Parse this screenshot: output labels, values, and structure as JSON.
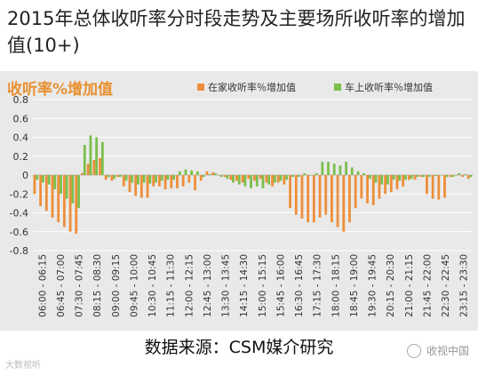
{
  "title": "2015年总体收听率分时段走势及主要场所收听率的增加值(10+)",
  "source": "数据来源：CSM媒介研究",
  "watermark_left": "大数视听",
  "watermark_right": "收视中国",
  "colors": {
    "home": "#ee8e3a",
    "car": "#7bbf4c",
    "subtitle": "#e8902f"
  },
  "chart_data": {
    "type": "bar",
    "title": "收听率%增加值",
    "ylim": [
      -0.8,
      0.8
    ],
    "yticks": [
      "0.8",
      "0.6",
      "0.4",
      "0.2",
      "0",
      "-0.2",
      "-0.4",
      "-0.6",
      "-0.8"
    ],
    "x_tick_labels": [
      "06:00 - 06:15",
      "06:45 - 07:00",
      "07:30 - 07:45",
      "08:15 - 08:30",
      "09:00 - 09:15",
      "09:45 - 10:00",
      "10:30 - 10:45",
      "11:15 - 11:30",
      "12:00 - 12:15",
      "12:45 - 13:00",
      "13:30 - 13:45",
      "14:15 - 14:30",
      "15:00 - 15:15",
      "15:45 - 16:00",
      "16:30 - 16:45",
      "17:15 - 17:30",
      "18:00 - 18:15",
      "18:45 - 19:00",
      "19:30 - 19:45",
      "20:15 - 20:30",
      "21:00 - 21:15",
      "21:45 - 22:00",
      "22:30 - 22:45",
      "23:15 - 23:30"
    ],
    "series": [
      {
        "name": "在家收听率％增加值",
        "values": [
          -0.2,
          -0.33,
          -0.38,
          -0.45,
          -0.5,
          -0.55,
          -0.6,
          -0.62,
          0.02,
          0.12,
          0.16,
          0.18,
          -0.05,
          -0.06,
          -0.02,
          -0.12,
          -0.18,
          -0.22,
          -0.24,
          -0.24,
          -0.12,
          -0.12,
          -0.15,
          -0.14,
          -0.14,
          -0.12,
          -0.08,
          -0.16,
          -0.06,
          0.04,
          0.03,
          0.0,
          -0.02,
          -0.05,
          -0.06,
          -0.08,
          -0.04,
          -0.06,
          -0.04,
          -0.08,
          -0.12,
          -0.08,
          -0.1,
          -0.35,
          -0.42,
          -0.46,
          -0.5,
          -0.5,
          -0.45,
          -0.42,
          -0.5,
          -0.55,
          -0.6,
          -0.5,
          -0.35,
          -0.25,
          -0.3,
          -0.32,
          -0.25,
          -0.2,
          -0.18,
          -0.15,
          -0.12,
          -0.05,
          -0.05,
          -0.02,
          -0.2,
          -0.25,
          -0.26,
          -0.24,
          -0.02,
          0.0,
          -0.02,
          -0.04
        ]
      },
      {
        "name": "车上收听率％增加值",
        "values": [
          -0.05,
          -0.08,
          -0.1,
          -0.15,
          -0.2,
          -0.25,
          -0.3,
          -0.35,
          0.32,
          0.42,
          0.4,
          0.35,
          -0.02,
          -0.04,
          -0.02,
          -0.06,
          -0.08,
          -0.1,
          -0.08,
          -0.09,
          -0.08,
          -0.06,
          -0.05,
          -0.05,
          0.04,
          0.06,
          0.05,
          0.04,
          -0.02,
          0.01,
          0.02,
          -0.02,
          -0.04,
          -0.08,
          -0.1,
          -0.12,
          -0.14,
          -0.12,
          -0.14,
          -0.1,
          -0.08,
          -0.06,
          -0.05,
          -0.02,
          -0.02,
          0.02,
          0.0,
          0.02,
          0.14,
          0.14,
          0.12,
          0.1,
          0.14,
          0.08,
          0.04,
          0.02,
          -0.04,
          -0.08,
          -0.1,
          -0.1,
          -0.05,
          -0.06,
          -0.05,
          -0.04,
          -0.02,
          -0.02,
          -0.02,
          -0.01,
          0.0,
          -0.02,
          -0.02,
          0.02,
          0.01,
          -0.02
        ]
      }
    ],
    "legend_position": "top-right",
    "grid": true
  }
}
